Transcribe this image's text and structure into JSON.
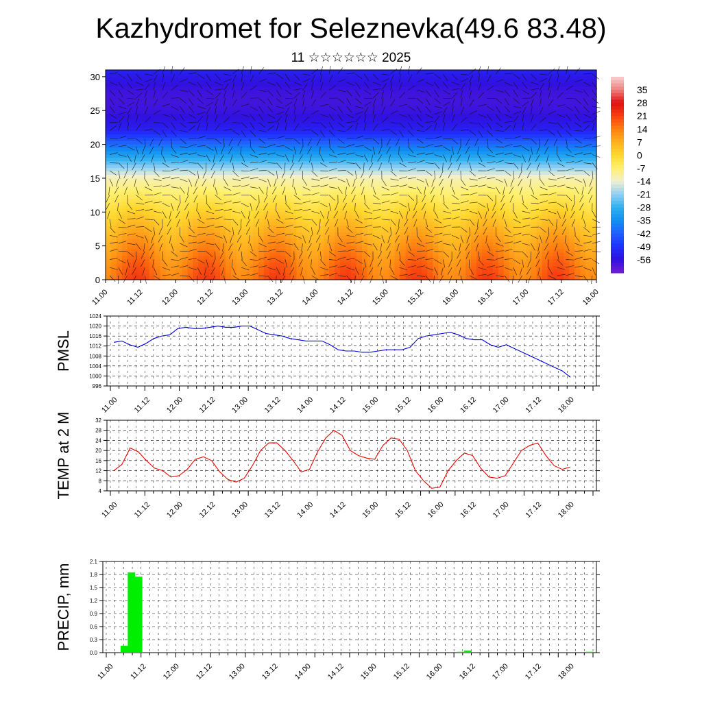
{
  "page": {
    "title": "Kazhydromet for Seleznevka(49.6 83.48)",
    "subtitle": "11 ☆☆☆☆☆☆ 2025"
  },
  "colors": {
    "pmsl_line": "#0000dd",
    "temp_line": "#ee0000",
    "precip_bar": "#00ee00",
    "grid": "#000000"
  },
  "chart_data": [
    {
      "type": "heatmap",
      "title": "",
      "xlabel": "",
      "ylabel": "",
      "x_tick_labels": [
        "11.00",
        "11.12",
        "12.00",
        "12.12",
        "13.00",
        "13.12",
        "14.00",
        "14.12",
        "15.00",
        "15.12",
        "16.00",
        "16.12",
        "17.00",
        "17.12",
        "18.00"
      ],
      "y_ticks": [
        0,
        5,
        10,
        15,
        20,
        25,
        30
      ],
      "ylim": [
        0,
        31
      ],
      "colorbar_labels": [
        "35",
        "28",
        "21",
        "14",
        "7",
        "0",
        "-7",
        "-14",
        "-21",
        "-28",
        "-35",
        "-42",
        "-49",
        "-56"
      ],
      "colorbar_range": [
        -63,
        42
      ],
      "description_values": {
        "surface_band_temp": [
          14,
          22
        ],
        "upper_band_temp": [
          -56,
          -49
        ]
      },
      "overlay": "wind barbs"
    },
    {
      "type": "line",
      "ylabel": "PMSL",
      "ylim": [
        996,
        1024
      ],
      "y_ticks": [
        996,
        1000,
        1004,
        1008,
        1012,
        1016,
        1020,
        1024
      ],
      "x_tick_labels": [
        "11.00",
        "11.12",
        "12.00",
        "12.12",
        "13.00",
        "13.12",
        "14.00",
        "14.12",
        "15.00",
        "15.12",
        "16.00",
        "16.12",
        "17.00",
        "17.12",
        "18.00"
      ],
      "series": [
        {
          "values": [
            1013.5,
            1014,
            1012.5,
            1011.5,
            1013,
            1015,
            1016,
            1016.5,
            1019,
            1019.5,
            1019,
            1019,
            1019.5,
            1020,
            1019.5,
            1019.5,
            1020,
            1020,
            1018.5,
            1017,
            1016.5,
            1016,
            1015,
            1014.5,
            1014,
            1014,
            1014,
            1012.5,
            1010.5,
            1010,
            1010,
            1009.5,
            1009.5,
            1010,
            1010.5,
            1010.5,
            1010.5,
            1011.5,
            1015,
            1016,
            1016.5,
            1017,
            1017.5,
            1016.5,
            1015,
            1014.5,
            1014.5,
            1012.5,
            1011.5,
            1012.5,
            1011,
            1009.5,
            1008,
            1006.5,
            1005,
            1003.5,
            1002,
            999.5
          ]
        }
      ]
    },
    {
      "type": "line",
      "ylabel": "TEMP at 2 M",
      "ylim": [
        4,
        32
      ],
      "y_ticks": [
        4,
        8,
        12,
        16,
        20,
        24,
        28,
        32
      ],
      "x_tick_labels": [
        "11.00",
        "11.12",
        "12.00",
        "12.12",
        "13.00",
        "13.12",
        "14.00",
        "14.12",
        "15.00",
        "15.12",
        "16.00",
        "16.12",
        "17.00",
        "17.12",
        "18.00"
      ],
      "series": [
        {
          "values": [
            12,
            14.5,
            21,
            19.5,
            16,
            13,
            12,
            9.5,
            10,
            12.5,
            16.5,
            17.5,
            16,
            11.5,
            8.5,
            7.5,
            9,
            14,
            20,
            23,
            23,
            20,
            16,
            11.5,
            12.5,
            19.5,
            25,
            28,
            26,
            20,
            18,
            17,
            16.5,
            22,
            25,
            24.5,
            20,
            12,
            8,
            5,
            5.5,
            12,
            16,
            19,
            18,
            13,
            9.5,
            9,
            10,
            15,
            20,
            22,
            23,
            18,
            14,
            12.5,
            13.5
          ]
        }
      ]
    },
    {
      "type": "bar",
      "ylabel": "PRECIP, mm",
      "ylim": [
        0,
        2.1
      ],
      "y_ticks": [
        "0.0",
        "0.3",
        "0.6",
        "0.9",
        "1.2",
        "1.5",
        "1.8",
        "2.1"
      ],
      "x_tick_labels": [
        "11.00",
        "11.12",
        "12.00",
        "12.12",
        "13.00",
        "13.12",
        "14.00",
        "14.12",
        "15.00",
        "15.12",
        "16.00",
        "16.12",
        "17.00",
        "17.12",
        "18.00"
      ],
      "series": [
        {
          "values": [
            0,
            0,
            0.16,
            1.85,
            1.75,
            0,
            0,
            0,
            0,
            0,
            0,
            0,
            0,
            0,
            0,
            0,
            0,
            0,
            0,
            0,
            0,
            0,
            0,
            0,
            0,
            0,
            0,
            0,
            0,
            0,
            0,
            0,
            0,
            0,
            0,
            0,
            0,
            0,
            0,
            0,
            0,
            0,
            0,
            0,
            0,
            0,
            0,
            0,
            0,
            0.02,
            0.05,
            0,
            0,
            0,
            0,
            0,
            0,
            0,
            0,
            0,
            0,
            0,
            0,
            0,
            0,
            0,
            0,
            0.02
          ]
        }
      ]
    }
  ]
}
